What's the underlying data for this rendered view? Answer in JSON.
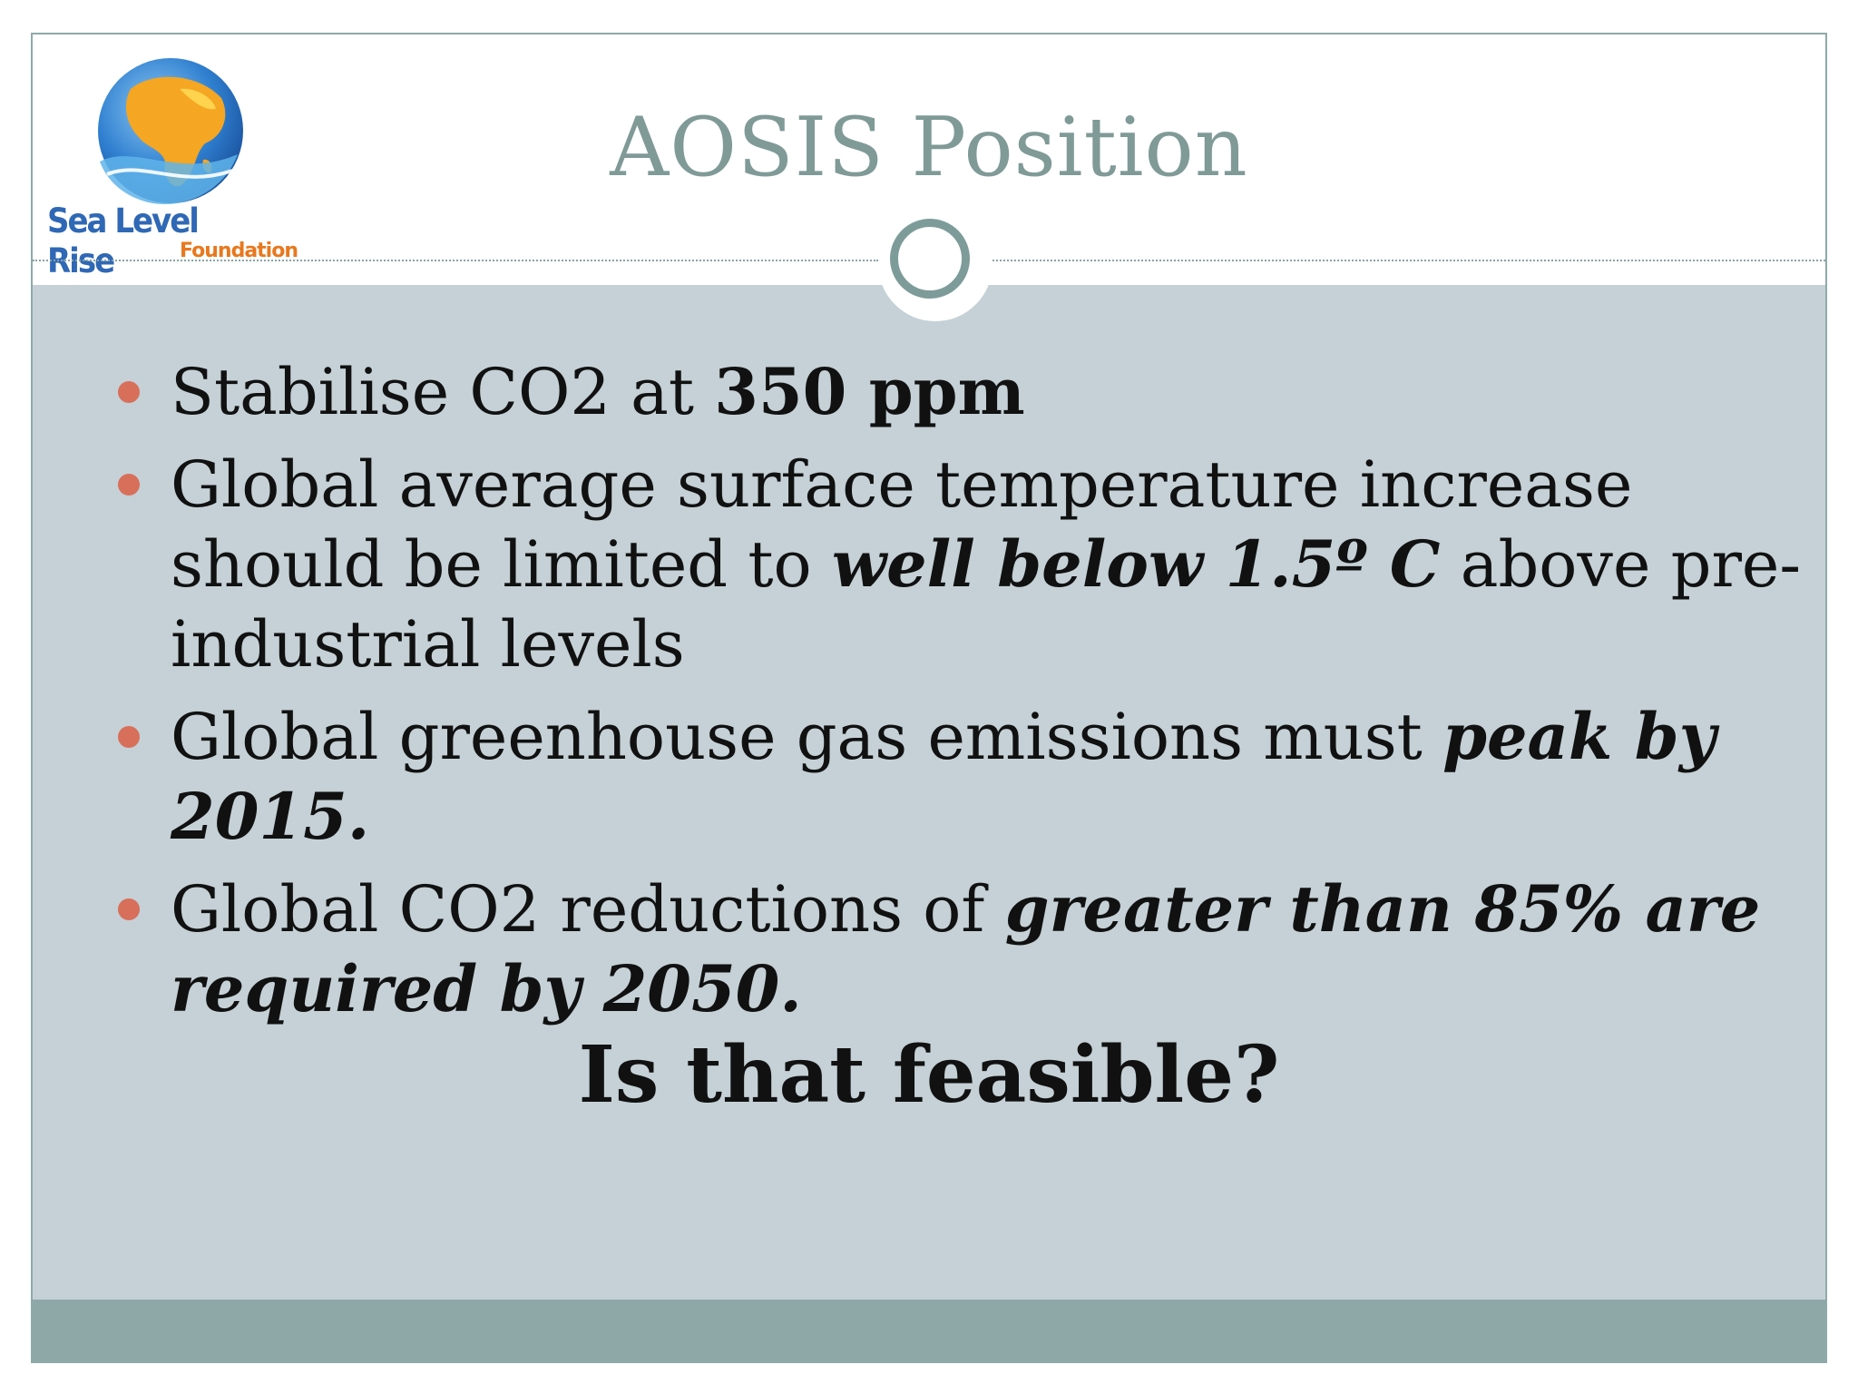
{
  "slide": {
    "title": "AOSIS Position",
    "logo": {
      "line1": "Sea Level Rise",
      "line2": "Foundation"
    },
    "bullets": [
      {
        "parts": [
          {
            "text": "Stabilise CO2 at ",
            "style": "normal"
          },
          {
            "text": "350 ppm",
            "style": "strong"
          }
        ]
      },
      {
        "parts": [
          {
            "text": "Global average surface temperature increase should be limited to ",
            "style": "normal"
          },
          {
            "text": "well below 1.5º C",
            "style": "em"
          },
          {
            "text": " above pre-industrial levels",
            "style": "normal"
          }
        ]
      },
      {
        "parts": [
          {
            "text": "Global greenhouse gas emissions must ",
            "style": "normal"
          },
          {
            "text": "peak by 2015.",
            "style": "em"
          }
        ]
      },
      {
        "parts": [
          {
            "text": "Global CO2 reductions of ",
            "style": "normal"
          },
          {
            "text": "greater than 85% are required by 2050.",
            "style": "em"
          }
        ]
      }
    ],
    "closing": "Is that feasible?",
    "colors": {
      "title": "#7f9a97",
      "body_panel": "#c5d1d6",
      "footer_bar": "#8ea8a8",
      "bullet": "#d86f5a",
      "logo_blue": "#2f68b5",
      "logo_orange": "#e8781e"
    }
  }
}
